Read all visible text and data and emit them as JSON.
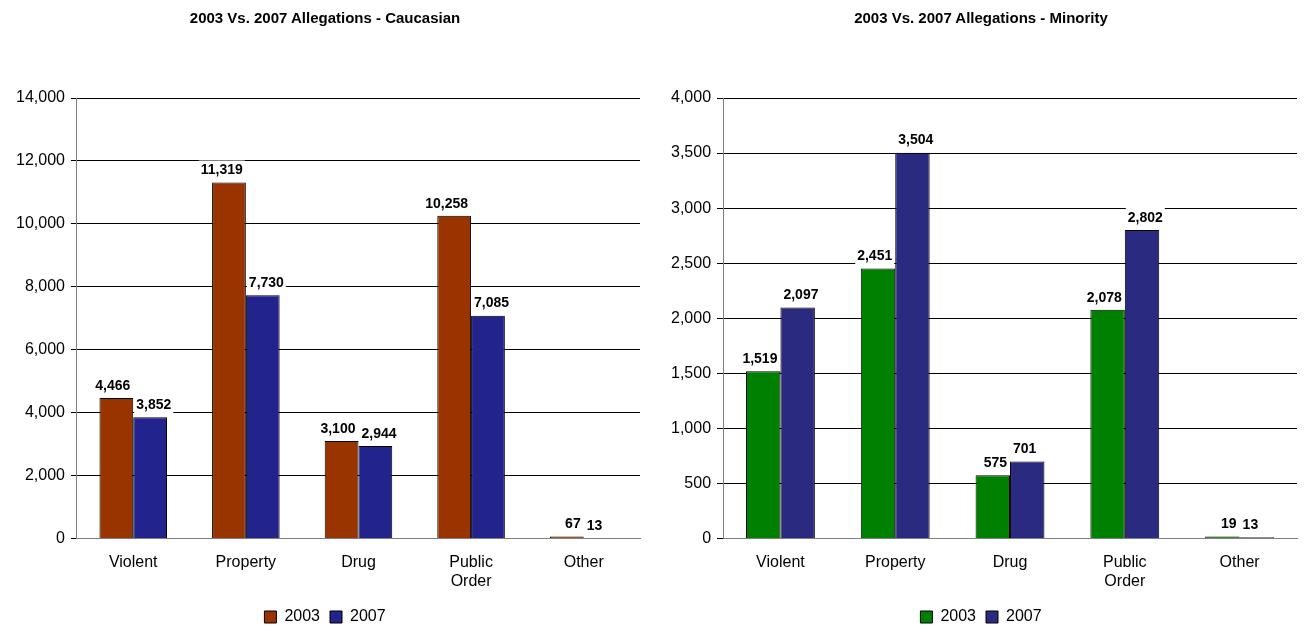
{
  "chart_data": [
    {
      "type": "bar",
      "title": "2003 Vs. 2007 Allegations - Caucasian",
      "categories": [
        "Violent",
        "Property",
        "Drug",
        "Public Order",
        "Other"
      ],
      "series": [
        {
          "name": "2003",
          "color": "#993300",
          "values": [
            4466,
            11319,
            3100,
            10258,
            67
          ],
          "value_labels": [
            "4,466",
            "11,319",
            "3,100",
            "10,258",
            "67"
          ]
        },
        {
          "name": "2007",
          "color": "#23238e",
          "values": [
            3852,
            7730,
            2944,
            7085,
            13
          ],
          "value_labels": [
            "3,852",
            "7,730",
            "2,944",
            "7,085",
            "13"
          ]
        }
      ],
      "ylim": [
        0,
        14000
      ],
      "yticks": [
        {
          "value": 0,
          "label": "0"
        },
        {
          "value": 2000,
          "label": "2,000"
        },
        {
          "value": 4000,
          "label": "4,000"
        },
        {
          "value": 6000,
          "label": "6,000"
        },
        {
          "value": 8000,
          "label": "8,000"
        },
        {
          "value": 10000,
          "label": "10,000"
        },
        {
          "value": 12000,
          "label": "12,000"
        },
        {
          "value": 14000,
          "label": "14,000"
        }
      ],
      "grid": "y",
      "legend": "bottom"
    },
    {
      "type": "bar",
      "title": "2003 Vs. 2007 Allegations - Minority",
      "categories": [
        "Violent",
        "Property",
        "Drug",
        "Public Order",
        "Other"
      ],
      "series": [
        {
          "name": "2003",
          "color": "#008000",
          "values": [
            1519,
            2451,
            575,
            2078,
            19
          ],
          "value_labels": [
            "1,519",
            "2,451",
            "575",
            "2,078",
            "19"
          ]
        },
        {
          "name": "2007",
          "color": "#2a2a80",
          "values": [
            2097,
            3504,
            701,
            2802,
            13
          ],
          "value_labels": [
            "2,097",
            "3,504",
            "701",
            "2,802",
            "13"
          ]
        }
      ],
      "ylim": [
        0,
        4000
      ],
      "yticks": [
        {
          "value": 0,
          "label": "0"
        },
        {
          "value": 500,
          "label": "500"
        },
        {
          "value": 1000,
          "label": "1,000"
        },
        {
          "value": 1500,
          "label": "1,500"
        },
        {
          "value": 2000,
          "label": "2,000"
        },
        {
          "value": 2500,
          "label": "2,500"
        },
        {
          "value": 3000,
          "label": "3,000"
        },
        {
          "value": 3500,
          "label": "3,500"
        },
        {
          "value": 4000,
          "label": "4,000"
        }
      ],
      "grid": "y",
      "legend": "bottom"
    }
  ]
}
